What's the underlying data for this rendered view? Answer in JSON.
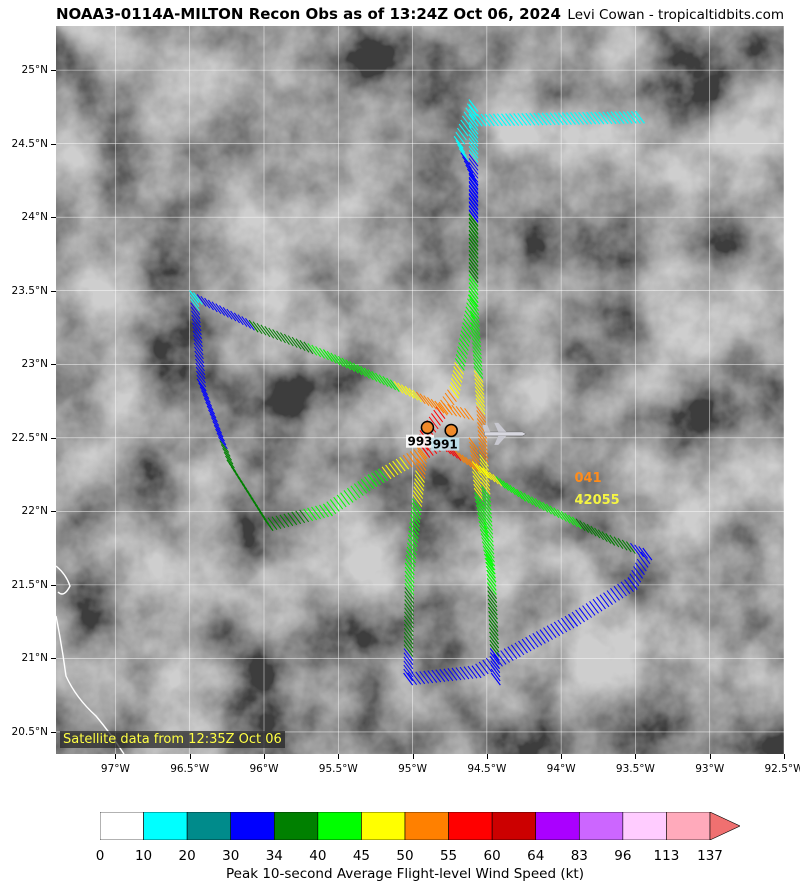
{
  "title": "NOAA3-0114A-MILTON Recon Obs as of 13:24Z Oct 06, 2024",
  "credit": "Levi Cowan - tropicaltidbits.com",
  "satellite_label": "Satellite data from 12:35Z Oct 06",
  "map": {
    "lon_range": [
      -97.4,
      -92.5
    ],
    "lat_range": [
      20.35,
      25.3
    ],
    "lat_ticks": [
      {
        "value": 25.0,
        "label": "25°N"
      },
      {
        "value": 24.5,
        "label": "24.5°N"
      },
      {
        "value": 24.0,
        "label": "24°N"
      },
      {
        "value": 23.5,
        "label": "23.5°N"
      },
      {
        "value": 23.0,
        "label": "23°N"
      },
      {
        "value": 22.5,
        "label": "22.5°N"
      },
      {
        "value": 22.0,
        "label": "22°N"
      },
      {
        "value": 21.5,
        "label": "21.5°N"
      },
      {
        "value": 21.0,
        "label": "21°N"
      },
      {
        "value": 20.5,
        "label": "20.5°N"
      }
    ],
    "lon_ticks": [
      {
        "value": -97.0,
        "label": "97°W"
      },
      {
        "value": -96.5,
        "label": "96.5°W"
      },
      {
        "value": -96.0,
        "label": "96°W"
      },
      {
        "value": -95.5,
        "label": "95.5°W"
      },
      {
        "value": -95.0,
        "label": "95°W"
      },
      {
        "value": -94.5,
        "label": "94.5°W"
      },
      {
        "value": -94.0,
        "label": "94°W"
      },
      {
        "value": -93.5,
        "label": "93.5°W"
      },
      {
        "value": -93.0,
        "label": "93°W"
      },
      {
        "value": -92.5,
        "label": "92.5°W"
      }
    ],
    "pressure_labels": [
      {
        "lon": -94.95,
        "lat": 22.46,
        "text": "993",
        "bg": "#ffffff"
      },
      {
        "lon": -94.78,
        "lat": 22.44,
        "text": "991",
        "bg": "#bfe3ee"
      }
    ],
    "center_fixes": [
      {
        "lon": -94.9,
        "lat": 22.57
      },
      {
        "lon": -94.74,
        "lat": 22.55
      }
    ],
    "aircraft": {
      "lon": -94.45,
      "lat": 22.54,
      "name": "aircraft-icon"
    },
    "obs_labels": [
      {
        "lon": -93.91,
        "lat": 22.2,
        "text": "041",
        "color": "#ff8c1a"
      },
      {
        "lon": -93.91,
        "lat": 22.05,
        "text": "42055",
        "color": "#f5f542"
      }
    ],
    "flight_track": [
      [
        -94.62,
        22.5
      ],
      [
        -94.58,
        22.1
      ],
      [
        -94.5,
        21.6
      ],
      [
        -94.47,
        20.9
      ],
      [
        -94.5,
        21.6
      ],
      [
        -94.62,
        23.5
      ],
      [
        -94.62,
        24.3
      ],
      [
        -94.72,
        24.55
      ],
      [
        -94.62,
        24.8
      ],
      [
        -94.62,
        24.7
      ],
      [
        -93.5,
        24.72
      ],
      [
        -94.62,
        24.7
      ],
      [
        -94.62,
        23.5
      ],
      [
        -94.75,
        22.85
      ],
      [
        -94.95,
        22.55
      ],
      [
        -95.05,
        21.65
      ],
      [
        -95.06,
        20.9
      ],
      [
        -94.6,
        20.95
      ],
      [
        -93.95,
        21.3
      ],
      [
        -93.55,
        21.55
      ],
      [
        -93.45,
        21.75
      ],
      [
        -93.7,
        21.85
      ],
      [
        -94.3,
        22.15
      ],
      [
        -94.85,
        22.5
      ],
      [
        -95.3,
        22.25
      ],
      [
        -95.6,
        22.05
      ],
      [
        -96.0,
        21.95
      ],
      [
        -96.25,
        22.35
      ],
      [
        -96.45,
        22.9
      ],
      [
        -96.5,
        23.5
      ],
      [
        -96.1,
        23.3
      ],
      [
        -95.6,
        23.1
      ],
      [
        -95.05,
        22.85
      ],
      [
        -94.85,
        22.75
      ],
      [
        -94.65,
        22.7
      ]
    ]
  },
  "colorbar": {
    "title": "Peak 10-second Average Flight-level Wind Speed (kt)",
    "ticks": [
      "0",
      "10",
      "20",
      "30",
      "34",
      "40",
      "45",
      "50",
      "55",
      "60",
      "64",
      "83",
      "96",
      "113",
      "137"
    ],
    "colors": [
      "#ffffff",
      "#00ffff",
      "#008b8b",
      "#0000ff",
      "#008000",
      "#00ff00",
      "#ffff00",
      "#ff8000",
      "#ff0000",
      "#cc0000",
      "#aa00ff",
      "#cc66ff",
      "#ffccff",
      "#ffaabb"
    ],
    "extend_color": "#f07070"
  }
}
